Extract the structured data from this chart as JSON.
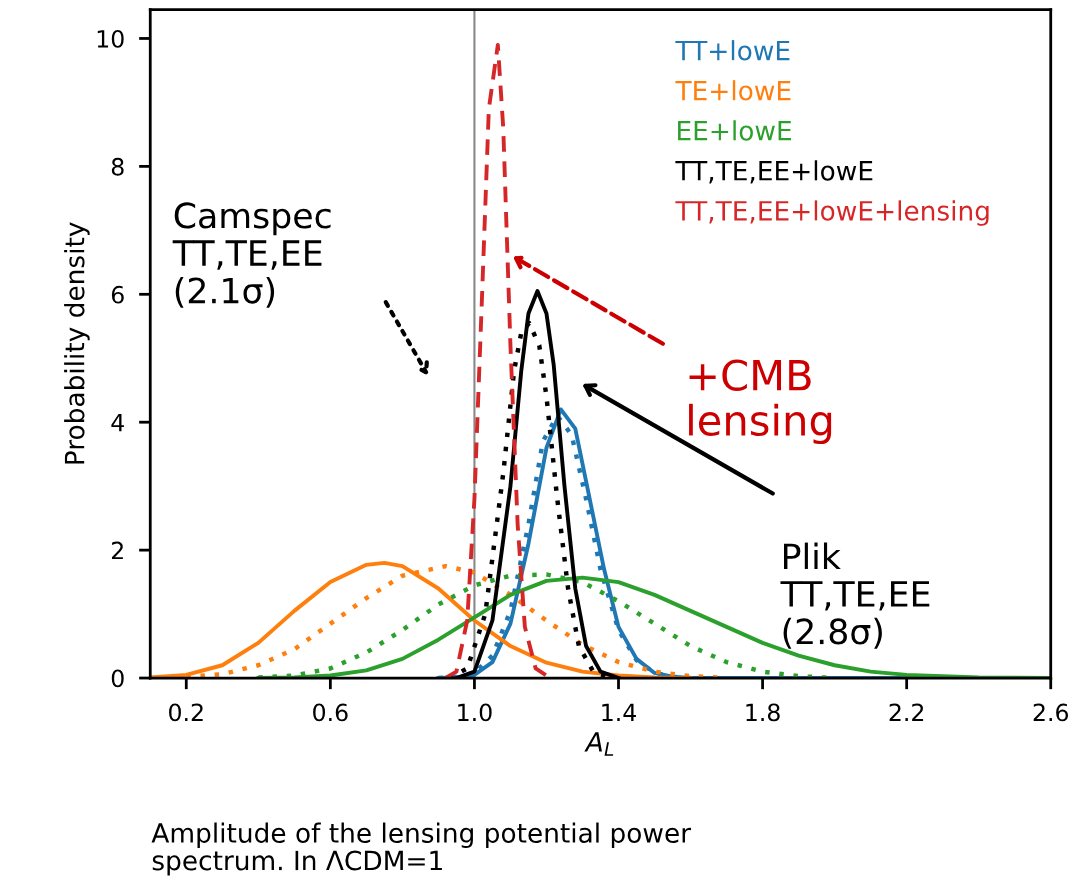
{
  "chart_data": {
    "type": "line",
    "xlabel": "A$_{L}$",
    "ylabel": "Probability density",
    "xlim": [
      0.1,
      2.6
    ],
    "ylim": [
      0,
      10.45
    ],
    "xticks": [
      {
        "value": 0.2,
        "label": "0.2"
      },
      {
        "value": 0.6,
        "label": "0.6"
      },
      {
        "value": 1.0,
        "label": "1.0"
      },
      {
        "value": 1.4,
        "label": "1.4"
      },
      {
        "value": 1.8,
        "label": "1.8"
      },
      {
        "value": 2.2,
        "label": "2.2"
      },
      {
        "value": 2.6,
        "label": "2.6"
      }
    ],
    "yticks": [
      0,
      2,
      4,
      6,
      8,
      10
    ],
    "grid": false,
    "legend": "top right",
    "marker": "none",
    "ref_lines": [
      {
        "axis": "x",
        "value": 1.0,
        "color": "#888888",
        "line_style": "solid"
      }
    ],
    "series": [
      {
        "name": "TT+lowE",
        "color": "#1f77b4",
        "line_style": "solid",
        "x": [
          0.9,
          0.95,
          1.0,
          1.05,
          1.1,
          1.15,
          1.2,
          1.24,
          1.28,
          1.32,
          1.36,
          1.4,
          1.45,
          1.5,
          1.55,
          1.6,
          2.6
        ],
        "values": [
          0,
          0.01,
          0.05,
          0.25,
          0.85,
          2.1,
          3.6,
          4.2,
          3.9,
          2.8,
          1.7,
          0.8,
          0.3,
          0.08,
          0.02,
          0,
          0
        ]
      },
      {
        "color": "#1f77b4",
        "line_style": "dotted",
        "x": [
          0.9,
          0.95,
          1.0,
          1.05,
          1.1,
          1.15,
          1.19,
          1.23,
          1.27,
          1.31,
          1.35,
          1.4,
          1.45,
          1.5,
          1.55,
          1.6
        ],
        "values": [
          0,
          0.02,
          0.08,
          0.35,
          1.05,
          2.4,
          3.7,
          4.1,
          3.8,
          2.8,
          1.7,
          0.75,
          0.28,
          0.08,
          0.02,
          0
        ]
      },
      {
        "name": "TE+lowE",
        "color": "#ff7f0e",
        "line_style": "solid",
        "x": [
          0.1,
          0.2,
          0.3,
          0.4,
          0.5,
          0.6,
          0.7,
          0.75,
          0.8,
          0.9,
          1.0,
          1.1,
          1.2,
          1.3,
          1.4,
          1.5,
          1.6
        ],
        "values": [
          0.01,
          0.05,
          0.2,
          0.55,
          1.05,
          1.5,
          1.77,
          1.8,
          1.75,
          1.4,
          0.9,
          0.5,
          0.24,
          0.1,
          0.04,
          0.01,
          0
        ]
      },
      {
        "color": "#ff7f0e",
        "line_style": "dotted",
        "x": [
          0.2,
          0.3,
          0.4,
          0.5,
          0.6,
          0.7,
          0.8,
          0.92,
          1.0,
          1.1,
          1.2,
          1.3,
          1.4,
          1.5,
          1.6,
          1.7
        ],
        "values": [
          0.02,
          0.06,
          0.2,
          0.45,
          0.85,
          1.25,
          1.6,
          1.75,
          1.65,
          1.3,
          0.9,
          0.52,
          0.25,
          0.1,
          0.03,
          0
        ]
      },
      {
        "name": "EE+lowE",
        "color": "#2ca02c",
        "line_style": "solid",
        "x": [
          0.4,
          0.5,
          0.6,
          0.7,
          0.8,
          0.9,
          1.0,
          1.1,
          1.2,
          1.3,
          1.4,
          1.5,
          1.6,
          1.7,
          1.8,
          1.9,
          2.0,
          2.1,
          2.2,
          2.4,
          2.6
        ],
        "values": [
          0,
          0.01,
          0.04,
          0.12,
          0.3,
          0.6,
          0.95,
          1.3,
          1.52,
          1.57,
          1.5,
          1.3,
          1.05,
          0.8,
          0.55,
          0.35,
          0.2,
          0.1,
          0.05,
          0.01,
          0
        ]
      },
      {
        "color": "#2ca02c",
        "line_style": "dotted",
        "x": [
          0.4,
          0.5,
          0.6,
          0.7,
          0.8,
          0.9,
          1.0,
          1.1,
          1.2,
          1.3,
          1.4,
          1.5,
          1.6,
          1.7,
          1.8,
          1.9,
          2.0
        ],
        "values": [
          0.01,
          0.04,
          0.15,
          0.4,
          0.75,
          1.15,
          1.45,
          1.6,
          1.62,
          1.5,
          1.2,
          0.85,
          0.5,
          0.25,
          0.1,
          0.03,
          0
        ]
      },
      {
        "name": "TT,TE,EE+lowE",
        "color": "#000000",
        "line_style": "solid",
        "x": [
          0.95,
          1.0,
          1.05,
          1.1,
          1.13,
          1.15,
          1.175,
          1.2,
          1.22,
          1.25,
          1.28,
          1.31,
          1.35,
          1.4
        ],
        "values": [
          0,
          0.1,
          0.9,
          3.0,
          4.8,
          5.7,
          6.05,
          5.7,
          4.9,
          3.0,
          1.4,
          0.5,
          0.1,
          0
        ]
      },
      {
        "color": "#000000",
        "line_style": "dotted",
        "x": [
          0.93,
          0.98,
          1.03,
          1.08,
          1.11,
          1.13,
          1.152,
          1.18,
          1.2,
          1.23,
          1.26,
          1.29,
          1.33,
          1.38
        ],
        "values": [
          0,
          0.15,
          1.0,
          3.2,
          4.8,
          5.4,
          5.55,
          5.2,
          4.4,
          2.8,
          1.4,
          0.5,
          0.1,
          0
        ]
      },
      {
        "name": "TT,TE,EE+lowE+lensing",
        "color": "#d62728",
        "line_style": "dashed",
        "x": [
          0.92,
          0.95,
          0.98,
          1.0,
          1.02,
          1.04,
          1.065,
          1.08,
          1.1,
          1.12,
          1.14,
          1.17,
          1.21
        ],
        "values": [
          0,
          0.1,
          0.9,
          2.8,
          5.8,
          8.9,
          9.9,
          8.6,
          5.2,
          2.4,
          0.8,
          0.15,
          0
        ]
      }
    ],
    "annotations": [
      "Camspec\nTT,TE,EE\n(2.1σ)",
      "Plik\nTT,TE,EE\n(2.8σ)",
      "+CMB\nlensing",
      "Amplitude of the lensing potential power\nspectrum. In ΛCDM=1"
    ]
  }
}
